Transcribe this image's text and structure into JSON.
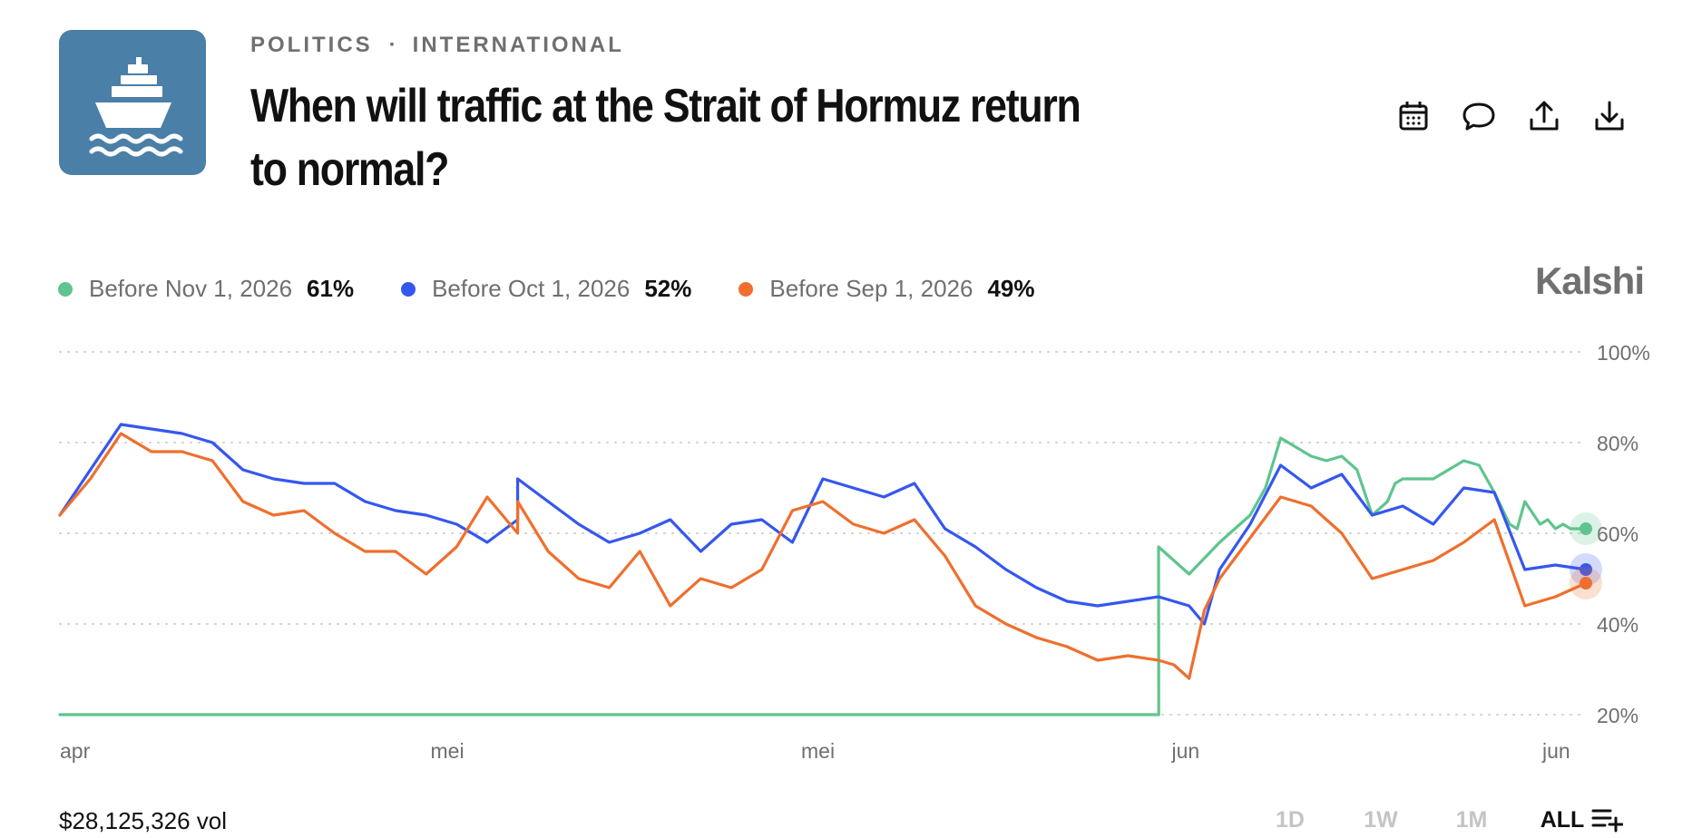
{
  "header": {
    "category": "POLITICS",
    "separator": "·",
    "subcategory": "INTERNATIONAL",
    "title": "When will traffic at the Strait of Hormuz return to normal?",
    "logo_icon": "cargo-ship-icon",
    "logo_bg": "#4a7fa7"
  },
  "actions": [
    {
      "name": "calendar-icon"
    },
    {
      "name": "comment-icon"
    },
    {
      "name": "share-icon"
    },
    {
      "name": "download-icon"
    }
  ],
  "brand": "Kalshi",
  "legend": [
    {
      "label": "Before Nov 1, 2026",
      "value": "61%",
      "color": "#5fc48e"
    },
    {
      "label": "Before Oct 1, 2026",
      "value": "52%",
      "color": "#3557f0"
    },
    {
      "label": "Before Sep 1, 2026",
      "value": "49%",
      "color": "#ef6f2e"
    }
  ],
  "chart_data": {
    "type": "line",
    "x_tick_labels": [
      "apr",
      "mei",
      "mei",
      "jun",
      "jun"
    ],
    "y_tick_labels": [
      "100%",
      "80%",
      "60%",
      "40%",
      "20%"
    ],
    "ylim": [
      20,
      100
    ],
    "grid": true,
    "legend_position": "top-left",
    "series": [
      {
        "name": "Before Nov 1, 2026",
        "color": "#5fc48e",
        "x": [
          0,
          0.2,
          0.4,
          0.6,
          0.72,
          0.7201,
          0.72,
          0.74,
          0.76,
          0.78,
          0.79,
          0.8,
          0.81,
          0.82,
          0.83,
          0.84,
          0.85,
          0.86,
          0.87,
          0.875,
          0.88,
          0.89,
          0.9,
          0.91,
          0.92,
          0.93,
          0.94,
          0.95,
          0.955,
          0.96,
          0.97,
          0.975,
          0.98,
          0.985,
          0.99,
          0.995,
          1
        ],
        "y": [
          20,
          20,
          20,
          20,
          20,
          20,
          57,
          51,
          58,
          64,
          70,
          81,
          79,
          77,
          76,
          77,
          74,
          64,
          67,
          71,
          72,
          72,
          72,
          74,
          76,
          75,
          69,
          62,
          61,
          67,
          62,
          63,
          61,
          62,
          61,
          61,
          61
        ]
      },
      {
        "name": "Before Oct 1, 2026",
        "color": "#3557f0",
        "x": [
          0,
          0.02,
          0.04,
          0.06,
          0.08,
          0.1,
          0.12,
          0.14,
          0.16,
          0.18,
          0.2,
          0.22,
          0.24,
          0.26,
          0.28,
          0.3,
          0.3,
          0.32,
          0.34,
          0.36,
          0.38,
          0.4,
          0.42,
          0.44,
          0.46,
          0.48,
          0.5,
          0.52,
          0.54,
          0.56,
          0.58,
          0.6,
          0.62,
          0.64,
          0.66,
          0.68,
          0.7,
          0.72,
          0.73,
          0.74,
          0.75,
          0.76,
          0.78,
          0.8,
          0.82,
          0.84,
          0.86,
          0.88,
          0.9,
          0.92,
          0.94,
          0.96,
          0.98,
          1
        ],
        "y": [
          64,
          74,
          84,
          83,
          82,
          80,
          74,
          72,
          71,
          71,
          67,
          65,
          64,
          62,
          58,
          63,
          72,
          67,
          62,
          58,
          60,
          63,
          56,
          62,
          63,
          58,
          72,
          70,
          68,
          71,
          61,
          57,
          52,
          48,
          45,
          44,
          45,
          46,
          45,
          44,
          40,
          52,
          62,
          75,
          70,
          73,
          64,
          66,
          62,
          70,
          69,
          52,
          53,
          52
        ]
      },
      {
        "name": "Before Sep 1, 2026",
        "color": "#ef6f2e",
        "x": [
          0,
          0.02,
          0.04,
          0.06,
          0.08,
          0.1,
          0.12,
          0.14,
          0.16,
          0.18,
          0.2,
          0.22,
          0.24,
          0.26,
          0.28,
          0.3,
          0.3,
          0.32,
          0.34,
          0.36,
          0.38,
          0.4,
          0.42,
          0.44,
          0.46,
          0.48,
          0.5,
          0.52,
          0.54,
          0.56,
          0.58,
          0.6,
          0.62,
          0.64,
          0.66,
          0.68,
          0.7,
          0.72,
          0.73,
          0.74,
          0.75,
          0.76,
          0.78,
          0.8,
          0.82,
          0.84,
          0.86,
          0.88,
          0.9,
          0.92,
          0.94,
          0.96,
          0.98,
          1
        ],
        "y": [
          64,
          72,
          82,
          78,
          78,
          76,
          67,
          64,
          65,
          60,
          56,
          56,
          51,
          57,
          68,
          60,
          67,
          56,
          50,
          48,
          56,
          44,
          50,
          48,
          52,
          65,
          67,
          62,
          60,
          63,
          55,
          44,
          40,
          37,
          35,
          32,
          33,
          32,
          31,
          28,
          43,
          50,
          59,
          68,
          66,
          60,
          50,
          52,
          54,
          58,
          63,
          44,
          46,
          49
        ]
      }
    ]
  },
  "footer": {
    "volume": "$28,125,326 vol",
    "ranges": [
      "1D",
      "1W",
      "1M",
      "ALL"
    ],
    "active_range": "ALL"
  }
}
